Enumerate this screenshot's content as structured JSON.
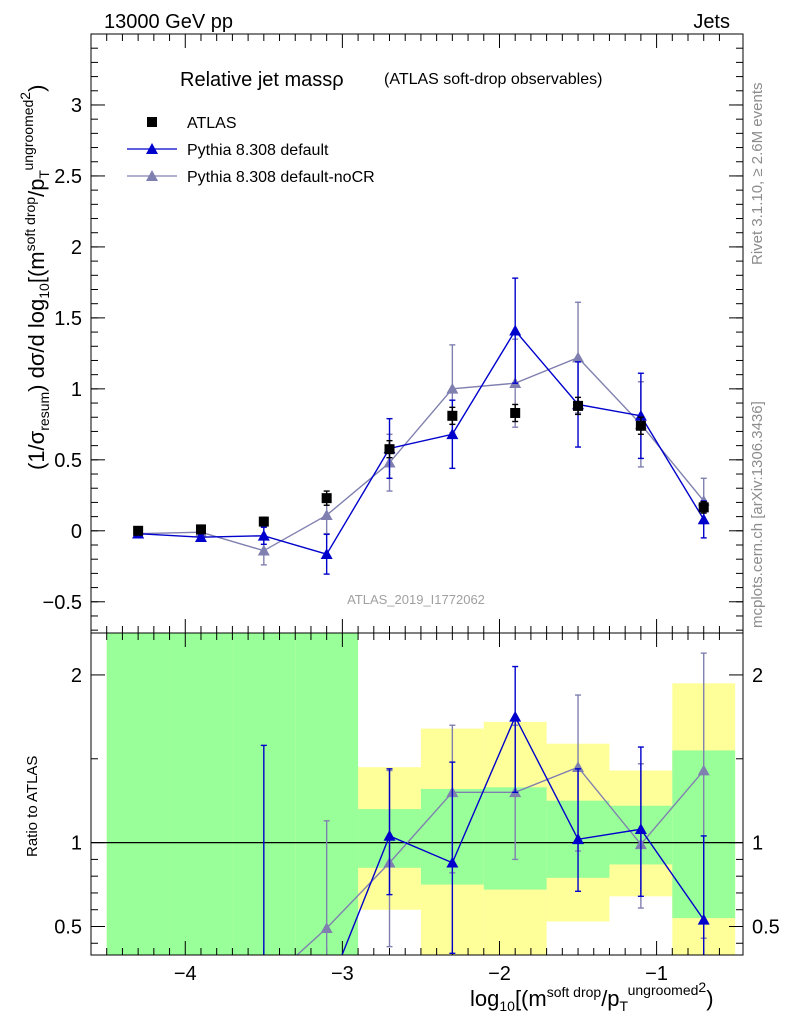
{
  "header": {
    "left": "13000 GeV pp",
    "right": "Jets"
  },
  "side_text": {
    "upper": "Rivet 3.1.10, ≥ 2.6M events",
    "lower": "mcplots.cern.ch [arXiv:1306.3436]"
  },
  "watermark": "ATLAS_2019_I1772062",
  "colors": {
    "atlas": "#000000",
    "default": "#0000cc",
    "noCR": "#8080b0",
    "band_inner": "#99ff99",
    "band_outer": "#ffff99"
  },
  "chart_data": [
    {
      "type": "scatter",
      "panel": "main",
      "title": "Relative jet massρ",
      "subtitle": "(ATLAS soft-drop observables)",
      "ylabel": "(1/σresum) dσ/d log10[(m soft drop / pT ungroomed)2]",
      "ylim": [
        -0.72,
        3.5
      ],
      "yticks": [
        -0.5,
        0,
        0.5,
        1,
        1.5,
        2,
        2.5,
        3
      ],
      "ytick_labels": [
        "−0.5",
        "0",
        "0.5",
        "1",
        "1.5",
        "2",
        "2.5",
        "3"
      ],
      "legend_position": "top-left",
      "x": [
        -4.3,
        -3.9,
        -3.5,
        -3.1,
        -2.7,
        -2.3,
        -1.9,
        -1.5,
        -1.1,
        -0.7
      ],
      "series": [
        {
          "name": "ATLAS",
          "marker": "square",
          "values": [
            0.0,
            0.01,
            0.065,
            0.23,
            0.575,
            0.81,
            0.83,
            0.88,
            0.74,
            0.165
          ],
          "yerr": [
            0.02,
            0.02,
            0.03,
            0.05,
            0.06,
            0.06,
            0.06,
            0.06,
            0.06,
            0.04
          ]
        },
        {
          "name": "Pythia 8.308 default",
          "marker": "triangle",
          "values": [
            -0.02,
            -0.045,
            -0.035,
            -0.165,
            0.58,
            0.68,
            1.41,
            0.89,
            0.81,
            0.08
          ],
          "yerr": [
            0.01,
            0.015,
            0.06,
            0.14,
            0.21,
            0.24,
            0.37,
            0.3,
            0.3,
            0.13
          ]
        },
        {
          "name": "Pythia 8.308 default-noCR",
          "marker": "triangle",
          "values": [
            -0.02,
            -0.01,
            -0.14,
            0.11,
            0.48,
            1.0,
            1.04,
            1.22,
            0.75,
            0.21
          ],
          "yerr": [
            0.01,
            0.02,
            0.1,
            0.13,
            0.2,
            0.31,
            0.31,
            0.39,
            0.3,
            0.16
          ]
        }
      ]
    },
    {
      "type": "scatter",
      "panel": "ratio",
      "xlabel": "log10[(m soft drop / pT ungroomed)2]",
      "ylabel": "Ratio to ATLAS",
      "ylim": [
        0.33,
        2.25
      ],
      "yticks": [
        0.5,
        1,
        2
      ],
      "ytick_labels": [
        "0.5",
        "1",
        "2"
      ],
      "xlim": [
        -4.6,
        -0.45
      ],
      "xticks": [
        -4,
        -3,
        -2,
        -1
      ],
      "xtick_labels": [
        "−4",
        "−3",
        "−2",
        "−1"
      ],
      "x": [
        -4.3,
        -3.9,
        -3.5,
        -3.1,
        -2.7,
        -2.3,
        -1.9,
        -1.5,
        -1.1,
        -0.7
      ],
      "bin_edges": [
        -4.5,
        -4.1,
        -3.7,
        -3.3,
        -2.9,
        -2.5,
        -2.1,
        -1.7,
        -1.3,
        -0.9,
        -0.5
      ],
      "bands": {
        "inner": [
          [
            0.3,
            2.5
          ],
          [
            0.3,
            2.5
          ],
          [
            0.3,
            2.5
          ],
          [
            0.3,
            2.5
          ],
          [
            0.85,
            1.2
          ],
          [
            0.75,
            1.32
          ],
          [
            0.72,
            1.33
          ],
          [
            0.79,
            1.25
          ],
          [
            0.87,
            1.22
          ],
          [
            0.55,
            1.55
          ]
        ],
        "outer": [
          [
            0.3,
            2.5
          ],
          [
            0.3,
            2.5
          ],
          [
            0.3,
            2.5
          ],
          [
            0.3,
            2.18
          ],
          [
            0.6,
            1.45
          ],
          [
            0.33,
            1.68
          ],
          [
            0.33,
            1.72
          ],
          [
            0.53,
            1.59
          ],
          [
            0.68,
            1.43
          ],
          [
            0.3,
            1.95
          ]
        ]
      },
      "series": [
        {
          "name": "Pythia 8.308 default",
          "values": [
            null,
            null,
            null,
            null,
            1.04,
            0.88,
            1.75,
            1.02,
            1.08,
            0.54
          ],
          "err_low": [
            null,
            null,
            null,
            null,
            0.35,
            0.54,
            0.45,
            0.31,
            0.4,
            0.75
          ],
          "err_high": [
            null,
            null,
            1.58,
            null,
            0.4,
            0.6,
            0.3,
            0.42,
            0.49,
            0.5
          ]
        },
        {
          "name": "Pythia 8.308 default-noCR",
          "values": [
            null,
            null,
            null,
            0.49,
            0.88,
            1.3,
            1.3,
            1.45,
            0.99,
            1.43
          ],
          "err_low": [
            null,
            null,
            null,
            0.6,
            0.5,
            0.48,
            0.4,
            0.5,
            0.38,
            1.0
          ],
          "err_high": [
            null,
            null,
            null,
            0.64,
            0.55,
            0.4,
            0.4,
            0.43,
            0.48,
            0.7
          ]
        }
      ]
    }
  ]
}
